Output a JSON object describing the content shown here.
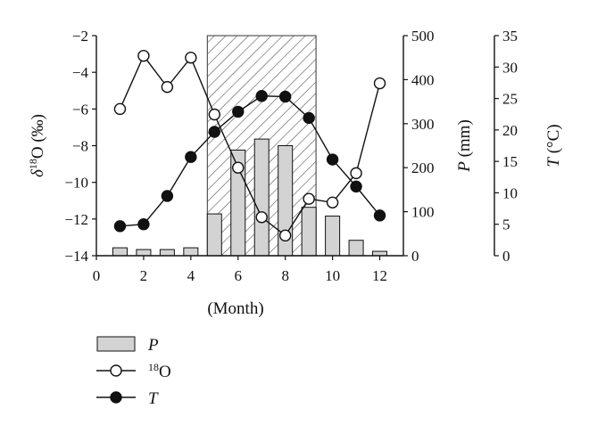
{
  "chart_data": {
    "type": "bar+line",
    "x": [
      1,
      2,
      3,
      4,
      5,
      6,
      7,
      8,
      9,
      10,
      11,
      12
    ],
    "xlim": [
      0,
      13
    ],
    "xticks": [
      0,
      2,
      4,
      6,
      8,
      10,
      12
    ],
    "xlabel": "(Month)",
    "shaded_region": [
      4.7,
      9.3
    ],
    "axes": {
      "left": {
        "label_symbol": "δ",
        "label_sup": "18",
        "label_rest": "O (‰)",
        "ylim": [
          -14,
          -2
        ],
        "ticks": [
          -14,
          -12,
          -10,
          -8,
          -6,
          -4,
          -2
        ]
      },
      "right1": {
        "label_symbol": "P",
        "label_rest": " (mm)",
        "ylim": [
          0,
          500
        ],
        "ticks": [
          0,
          100,
          200,
          300,
          400,
          500
        ]
      },
      "right2": {
        "label_symbol": "T",
        "label_rest": " (°C)",
        "ylim": [
          0,
          35
        ],
        "ticks": [
          0,
          5,
          10,
          15,
          20,
          25,
          30,
          35
        ]
      }
    },
    "series": [
      {
        "name": "P",
        "type": "bar",
        "axis": "right1",
        "values": [
          18,
          14,
          14,
          18,
          95,
          240,
          265,
          250,
          110,
          90,
          35,
          10
        ]
      },
      {
        "name": "18O",
        "type": "line",
        "marker": "open-circle",
        "axis": "left",
        "values": [
          -6.0,
          -3.1,
          -4.8,
          -3.2,
          -6.3,
          -9.2,
          -11.9,
          -12.9,
          -10.9,
          -11.1,
          -9.5,
          -4.6
        ]
      },
      {
        "name": "T",
        "type": "line",
        "marker": "filled-circle",
        "axis": "right2",
        "values": [
          4.7,
          5.0,
          9.5,
          15.7,
          19.7,
          22.9,
          25.4,
          25.3,
          21.9,
          15.3,
          11.0,
          6.4
        ]
      }
    ],
    "legend": {
      "placement": "bottom-left",
      "items": [
        {
          "kind": "bar",
          "symbol": "P",
          "italic": true
        },
        {
          "kind": "open-circle",
          "sup": "18",
          "rest": "O",
          "italic": false
        },
        {
          "kind": "filled-circle",
          "symbol": "T",
          "italic": true
        }
      ]
    },
    "colors": {
      "bar_fill": "#d3d3d3",
      "stroke": "#111111",
      "hatch": "#555555"
    }
  }
}
